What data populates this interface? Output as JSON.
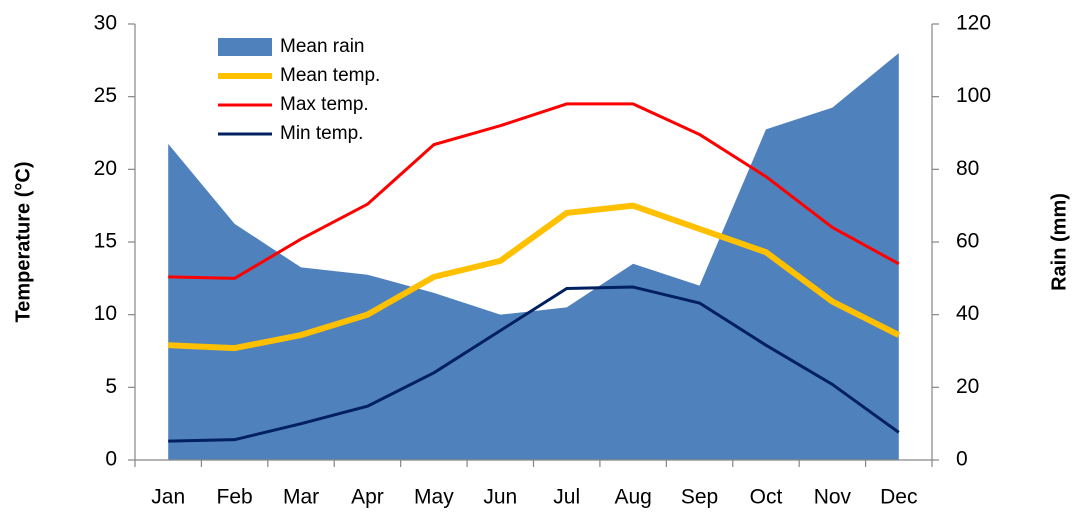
{
  "chart_data": {
    "type": "line",
    "categories": [
      "Jan",
      "Feb",
      "Mar",
      "Apr",
      "May",
      "Jun",
      "Jul",
      "Aug",
      "Sep",
      "Oct",
      "Nov",
      "Dec"
    ],
    "series": [
      {
        "name": "Mean rain",
        "type": "area",
        "axis": "y2",
        "color": "#4f81bd",
        "values": [
          87,
          65,
          53,
          51,
          46,
          40,
          42,
          54,
          48,
          91,
          97,
          112
        ]
      },
      {
        "name": "Mean temp.",
        "type": "line",
        "color": "#ffc000",
        "width": 6,
        "values": [
          7.9,
          7.7,
          8.6,
          10,
          12.6,
          13.7,
          17,
          17.5,
          15.9,
          14.3,
          10.9,
          8.6
        ]
      },
      {
        "name": "Max temp.",
        "type": "line",
        "color": "#ff0000",
        "width": 3,
        "values": [
          12.6,
          12.5,
          15.2,
          17.6,
          21.7,
          23,
          24.5,
          24.5,
          22.4,
          19.5,
          16,
          13.5
        ]
      },
      {
        "name": "Min temp.",
        "type": "line",
        "color": "#002060",
        "width": 3,
        "values": [
          1.3,
          1.4,
          2.5,
          3.7,
          6,
          8.9,
          11.8,
          11.9,
          10.8,
          7.9,
          5.2,
          1.9
        ]
      }
    ],
    "y_label": "Temperature (°C)",
    "y2_label": "Rain (mm)",
    "ylim": [
      0,
      30
    ],
    "yticks": [
      0,
      5,
      10,
      15,
      20,
      25,
      30
    ],
    "y2lim": [
      0,
      120
    ],
    "y2ticks": [
      0,
      20,
      40,
      60,
      80,
      100,
      120
    ],
    "grid": false,
    "legend": "top-left"
  }
}
